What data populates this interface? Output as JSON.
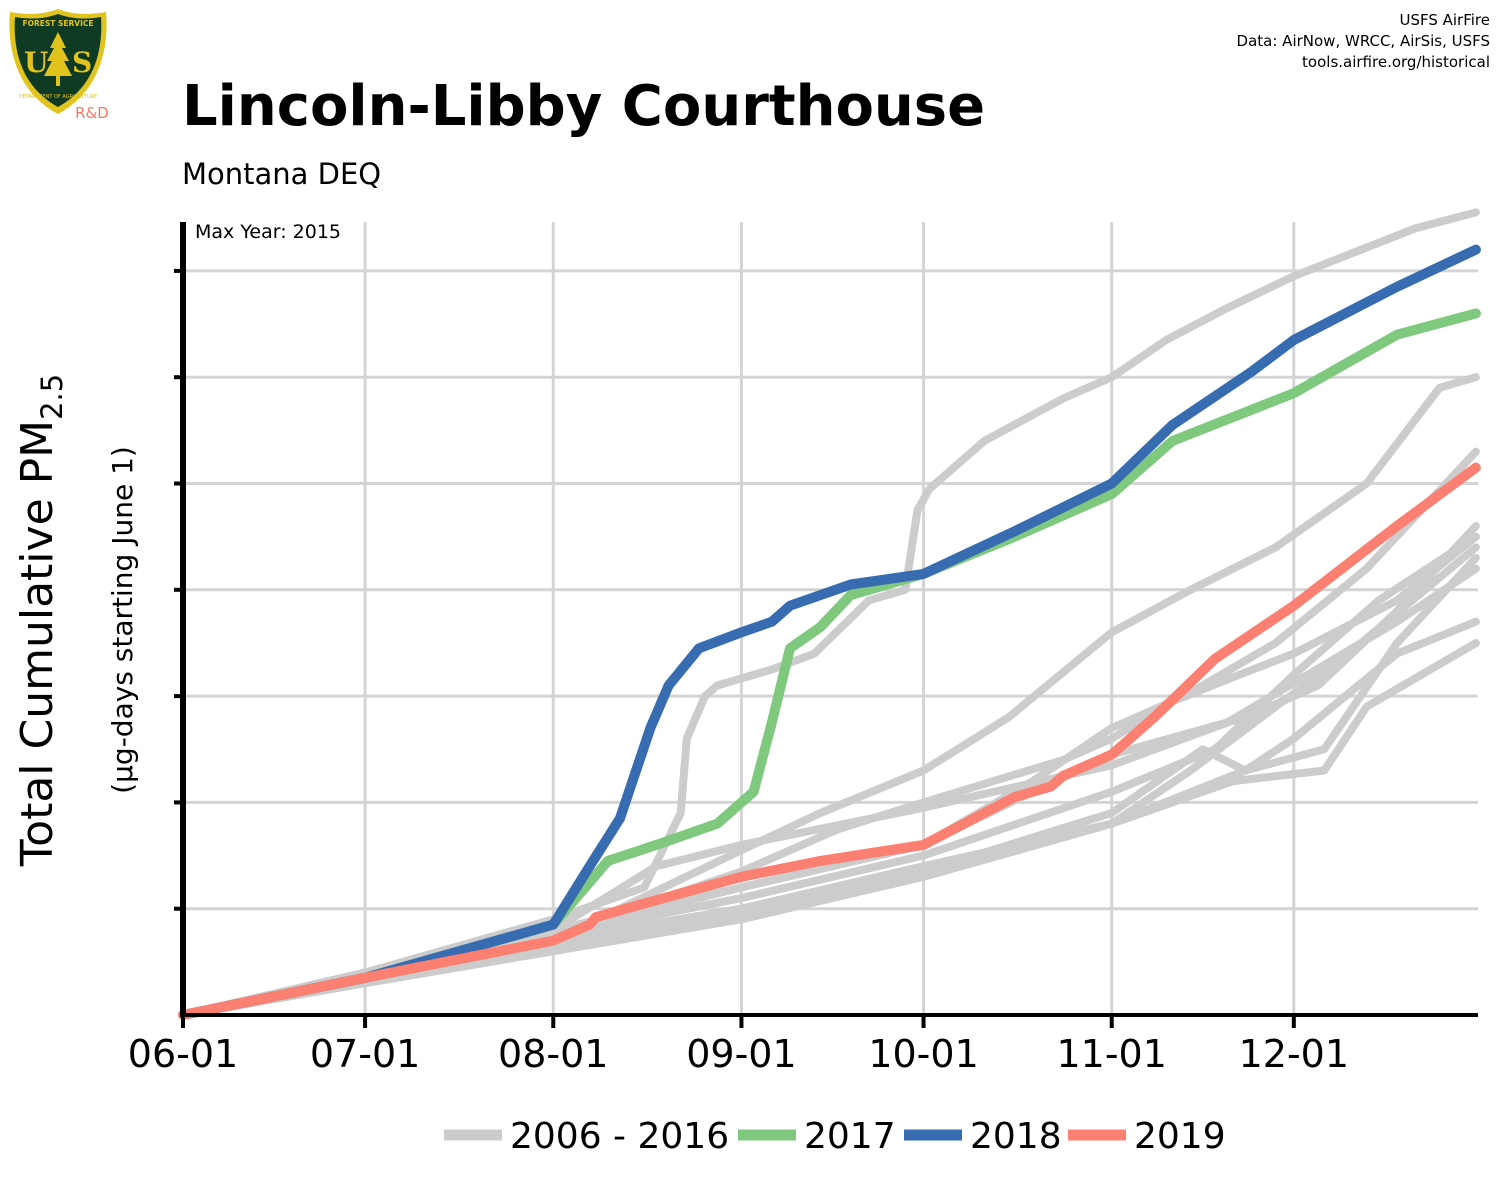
{
  "logo": {
    "agency": "FOREST SERVICE",
    "department": "DEPARTMENT OF AGRICULTURE",
    "letters": "U S",
    "division": "R&D",
    "colors": {
      "shield": "#0f3b24",
      "trim": "#e0c31c",
      "division": "#ef7a63"
    }
  },
  "credits": {
    "line1": "USFS AirFire",
    "line2": "Data: AirNow, WRCC, AirSis, USFS",
    "line3": "tools.airfire.org/historical"
  },
  "header": {
    "title": "Lincoln-Libby Courthouse",
    "subtitle": "Montana DEQ"
  },
  "chart_data": {
    "type": "line",
    "ylabel_main": "Total Cumulative PM",
    "ylabel_sub": "2.5",
    "ylabel_secondary": "(µg-days starting June 1)",
    "annotation": "Max Year: 2015",
    "x_unit": "day of year from June 1",
    "xlim": [
      0,
      213
    ],
    "ylim": [
      0,
      7.5
    ],
    "y_tick_labels_shown": false,
    "y_gridlines": [
      1,
      2,
      3,
      4,
      5,
      6,
      7
    ],
    "x_ticks": [
      {
        "label": "06-01",
        "day": 0
      },
      {
        "label": "07-01",
        "day": 30
      },
      {
        "label": "08-01",
        "day": 61
      },
      {
        "label": "09-01",
        "day": 92
      },
      {
        "label": "10-01",
        "day": 122
      },
      {
        "label": "11-01",
        "day": 153
      },
      {
        "label": "12-01",
        "day": 183
      }
    ],
    "grid": true,
    "legend": {
      "placement": "bottom",
      "entries": [
        {
          "label": "2006 - 2016",
          "color": "#cccccc"
        },
        {
          "label": "2017",
          "color": "#7fc97f"
        },
        {
          "label": "2018",
          "color": "#386cb0"
        },
        {
          "label": "2019",
          "color": "#fb8072"
        }
      ]
    },
    "series": [
      {
        "color": "#cccccc",
        "x": [
          0,
          30,
          61,
          76,
          82,
          83,
          86,
          88,
          91,
          97,
          104,
          113,
          119,
          121,
          123,
          126,
          132,
          145,
          153,
          162,
          172,
          183,
          203,
          213
        ],
        "y": [
          0,
          0.4,
          0.9,
          1.2,
          1.9,
          2.6,
          3.0,
          3.1,
          3.15,
          3.25,
          3.4,
          3.9,
          4.0,
          4.75,
          4.95,
          5.1,
          5.4,
          5.8,
          6.0,
          6.35,
          6.65,
          6.95,
          7.4,
          7.55
        ]
      },
      {
        "color": "#cccccc",
        "x": [
          0,
          30,
          61,
          92,
          105,
          122,
          136,
          153,
          166,
          180,
          195,
          207,
          213
        ],
        "y": [
          0,
          0.35,
          0.7,
          1.55,
          1.9,
          2.3,
          2.8,
          3.6,
          4.0,
          4.4,
          5.0,
          5.9,
          6.0
        ]
      },
      {
        "color": "#cccccc",
        "x": [
          0,
          30,
          61,
          92,
          122,
          140,
          153,
          165,
          180,
          195,
          213
        ],
        "y": [
          0,
          0.4,
          0.8,
          1.2,
          1.6,
          2.2,
          2.7,
          3.0,
          3.5,
          4.2,
          5.3
        ]
      },
      {
        "color": "#cccccc",
        "x": [
          0,
          30,
          61,
          92,
          122,
          153,
          170,
          183,
          197,
          213
        ],
        "y": [
          0,
          0.4,
          0.75,
          1.1,
          1.5,
          2.1,
          2.5,
          3.2,
          3.9,
          4.5
        ]
      },
      {
        "color": "#cccccc",
        "x": [
          0,
          30,
          61,
          92,
          108,
          122,
          145,
          153,
          163,
          174,
          183,
          200,
          213
        ],
        "y": [
          0,
          0.35,
          0.75,
          1.35,
          1.75,
          2.0,
          2.4,
          2.6,
          2.95,
          3.2,
          3.4,
          3.9,
          4.5
        ]
      },
      {
        "color": "#cccccc",
        "x": [
          0,
          30,
          61,
          92,
          122,
          153,
          166,
          180,
          192,
          213
        ],
        "y": [
          0,
          0.3,
          0.65,
          1.0,
          1.4,
          1.8,
          2.3,
          2.9,
          3.4,
          4.4
        ]
      },
      {
        "color": "#cccccc",
        "x": [
          0,
          30,
          61,
          92,
          122,
          153,
          168,
          175,
          188,
          200,
          213
        ],
        "y": [
          0,
          0.35,
          0.7,
          1.0,
          1.35,
          1.9,
          2.5,
          2.3,
          2.5,
          3.5,
          4.3
        ]
      },
      {
        "color": "#cccccc",
        "x": [
          0,
          30,
          61,
          92,
          122,
          140,
          153,
          175,
          187,
          200,
          213
        ],
        "y": [
          0,
          0.35,
          0.75,
          1.2,
          1.6,
          2.1,
          2.45,
          2.8,
          3.1,
          3.8,
          4.6
        ]
      },
      {
        "color": "#cccccc",
        "x": [
          0,
          30,
          61,
          92,
          122,
          153,
          175,
          183,
          200,
          213
        ],
        "y": [
          0,
          0.3,
          0.6,
          0.9,
          1.3,
          1.8,
          2.3,
          2.6,
          3.4,
          3.7
        ]
      },
      {
        "color": "#cccccc",
        "x": [
          0,
          30,
          61,
          92,
          122,
          153,
          173,
          188,
          195,
          213
        ],
        "y": [
          0,
          0.3,
          0.6,
          0.95,
          1.3,
          1.8,
          2.2,
          2.3,
          2.9,
          3.5
        ]
      },
      {
        "color": "#cccccc",
        "x": [
          0,
          30,
          61,
          78,
          92,
          122,
          153,
          172,
          200,
          213
        ],
        "y": [
          0,
          0.35,
          0.8,
          1.4,
          1.6,
          1.95,
          2.35,
          2.75,
          3.7,
          4.2
        ]
      },
      {
        "name": "2017",
        "color": "#7fc97f",
        "x": [
          0,
          30,
          61,
          70,
          78,
          88,
          94,
          97,
          100,
          105,
          110,
          122,
          137,
          153,
          163,
          183,
          200,
          213
        ],
        "y": [
          0,
          0.35,
          0.85,
          1.45,
          1.6,
          1.8,
          2.1,
          2.75,
          3.45,
          3.65,
          3.95,
          4.15,
          4.5,
          4.9,
          5.4,
          5.85,
          6.4,
          6.6
        ]
      },
      {
        "name": "2018",
        "color": "#386cb0",
        "x": [
          0,
          30,
          61,
          67,
          72,
          77,
          80,
          85,
          92,
          97,
          100,
          110,
          122,
          137,
          153,
          163,
          176,
          183,
          200,
          213
        ],
        "y": [
          0,
          0.35,
          0.85,
          1.4,
          1.85,
          2.7,
          3.1,
          3.45,
          3.6,
          3.7,
          3.85,
          4.05,
          4.15,
          4.55,
          5.0,
          5.55,
          6.05,
          6.35,
          6.85,
          7.2
        ]
      },
      {
        "name": "2019",
        "color": "#fb8072",
        "x": [
          0,
          30,
          61,
          67,
          68,
          76,
          92,
          105,
          122,
          137,
          143,
          145,
          153,
          160,
          170,
          183,
          200,
          213
        ],
        "y": [
          0,
          0.35,
          0.7,
          0.85,
          0.92,
          1.05,
          1.3,
          1.45,
          1.6,
          2.05,
          2.15,
          2.25,
          2.45,
          2.8,
          3.35,
          3.85,
          4.6,
          5.15
        ]
      }
    ]
  }
}
